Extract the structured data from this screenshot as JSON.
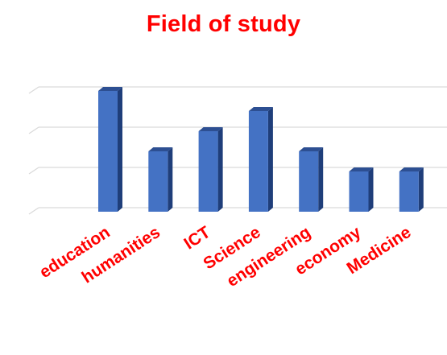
{
  "chart_data": {
    "type": "bar",
    "title": "Field of study",
    "categories": [
      "education",
      "humanities",
      "ICT",
      "Science",
      "engineering",
      "economy",
      "Medicine"
    ],
    "values": [
      6,
      3,
      4,
      5,
      3,
      2,
      2
    ],
    "ylim": [
      0,
      6
    ],
    "grid": true,
    "colors": {
      "bar_front": "#4472c4",
      "bar_side": "#1f3e7a",
      "bar_top": "#2d4f92",
      "text": "#ff0000",
      "grid": "#d9d9d9"
    }
  }
}
